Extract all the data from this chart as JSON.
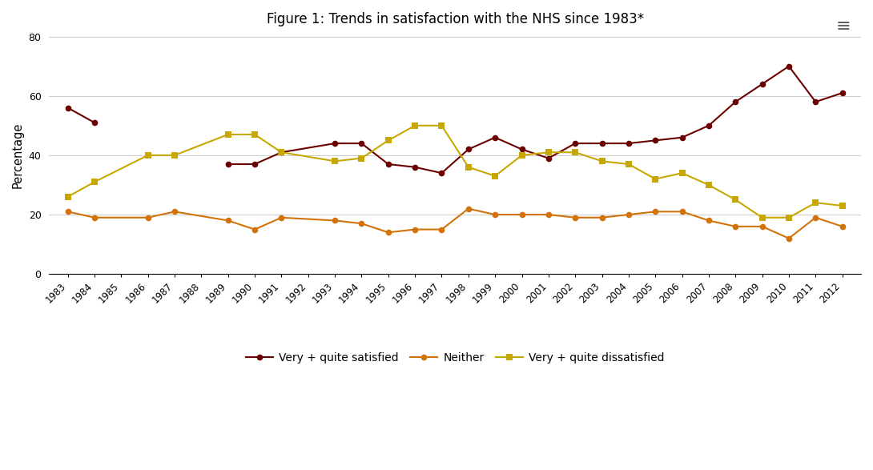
{
  "title": "Figure 1: Trends in satisfaction with the NHS since 1983*",
  "ylabel": "Percentage",
  "all_years": [
    1983,
    1984,
    1985,
    1986,
    1987,
    1988,
    1989,
    1990,
    1991,
    1992,
    1993,
    1994,
    1995,
    1996,
    1997,
    1998,
    1999,
    2000,
    2001,
    2002,
    2003,
    2004,
    2005,
    2006,
    2007,
    2008,
    2009,
    2010,
    2011,
    2012
  ],
  "data_years": [
    1983,
    1984,
    1986,
    1987,
    1989,
    1990,
    1991,
    1993,
    1994,
    1995,
    1996,
    1997,
    1998,
    1999,
    2000,
    2001,
    2002,
    2003,
    2004,
    2005,
    2006,
    2007,
    2008,
    2009,
    2010,
    2011,
    2012
  ],
  "satisfied": [
    56,
    51,
    null,
    null,
    37,
    37,
    41,
    44,
    44,
    37,
    36,
    34,
    42,
    46,
    42,
    39,
    44,
    44,
    44,
    45,
    46,
    50,
    58,
    64,
    70,
    58,
    61
  ],
  "neither": [
    21,
    19,
    19,
    21,
    18,
    15,
    19,
    18,
    17,
    14,
    15,
    15,
    22,
    20,
    20,
    20,
    19,
    19,
    20,
    21,
    21,
    18,
    16,
    16,
    12,
    19,
    16
  ],
  "dissatisfied": [
    26,
    31,
    40,
    40,
    47,
    47,
    41,
    38,
    39,
    45,
    50,
    50,
    36,
    33,
    40,
    41,
    41,
    38,
    37,
    32,
    34,
    30,
    25,
    19,
    19,
    24,
    23
  ],
  "satisfied_color": "#6b0000",
  "neither_color": "#d4720a",
  "dissatisfied_color": "#c8a800",
  "ylim": [
    0,
    80
  ],
  "yticks": [
    0,
    20,
    40,
    60,
    80
  ],
  "background_color": "#ffffff",
  "grid_color": "#cccccc",
  "legend_labels": [
    "Very + quite satisfied",
    "Neither",
    "Very + quite dissatisfied"
  ]
}
